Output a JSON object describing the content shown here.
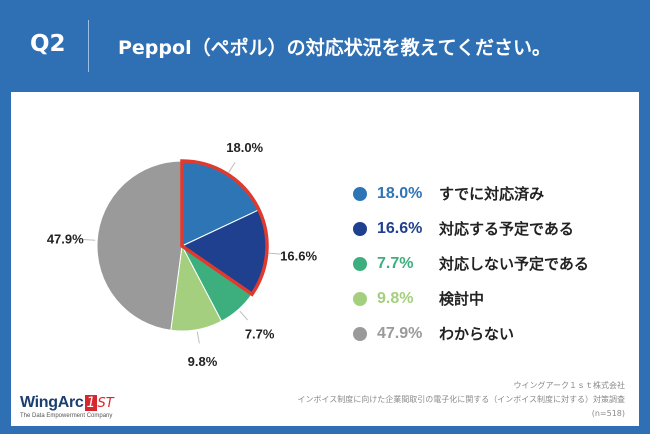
{
  "header": {
    "q_label": "Q2",
    "title": "Peppol（ペポル）の対応状況を教えてください。"
  },
  "chart_data": {
    "type": "pie",
    "slices": [
      {
        "label": "すでに対応済み",
        "value": 18.0,
        "value_label": "18.0%",
        "color": "#2e75b6",
        "highlighted": true
      },
      {
        "label": "対応する予定である",
        "value": 16.6,
        "value_label": "16.6%",
        "color": "#1f3f8f",
        "highlighted": true
      },
      {
        "label": "対応しない予定である",
        "value": 7.7,
        "value_label": "7.7%",
        "color": "#3daf7e",
        "highlighted": false
      },
      {
        "label": "検討中",
        "value": 9.8,
        "value_label": "9.8%",
        "color": "#a3cf7e",
        "highlighted": false
      },
      {
        "label": "わからない",
        "value": 47.9,
        "value_label": "47.9%",
        "color": "#9a9a9a",
        "highlighted": false
      }
    ],
    "start_angle": "12 o'clock",
    "direction": "clockwise",
    "legend_placement": "right",
    "highlight_color": "#e03a2f"
  },
  "footer": {
    "logo_main": "WingArc",
    "logo_one": "1",
    "logo_st": "ST",
    "logo_sub": "The Data Empowerment Company",
    "source_line1": "ウイングアーク１ｓｔ株式会社",
    "source_line2": "インボイス制度に向けた企業間取引の電子化に関する（インボイス制度に対する）対策調査",
    "source_line3": "(n=518)"
  }
}
